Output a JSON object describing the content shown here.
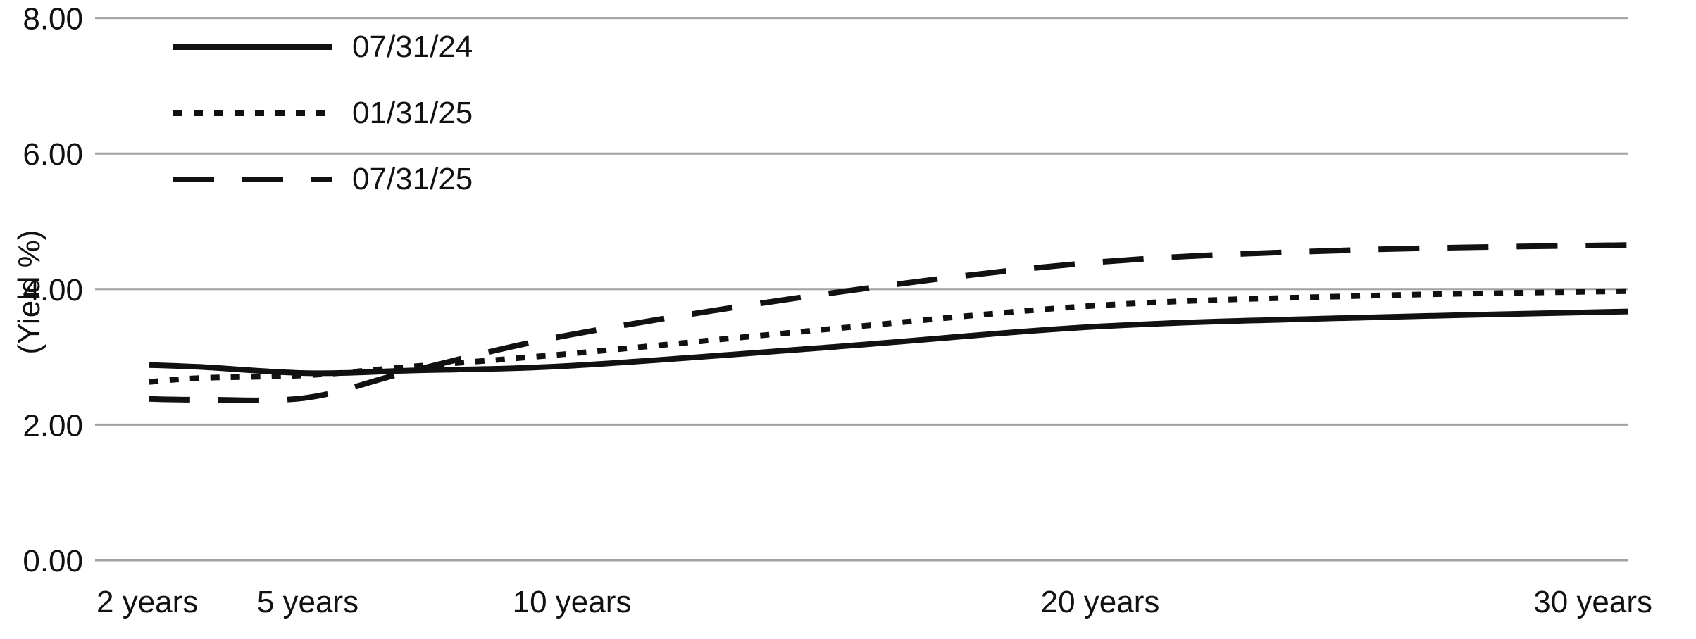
{
  "chart_data": {
    "type": "line",
    "title": "",
    "xlabel": "",
    "ylabel": "(Yield %)",
    "ylim": [
      0,
      8
    ],
    "xlim": [
      2,
      30
    ],
    "grid": "horizontal",
    "legend_position": "top-left",
    "y_ticks": [
      0,
      2,
      4,
      6,
      8
    ],
    "y_tick_labels": [
      "0.00",
      "2.00",
      "4.00",
      "6.00",
      "8.00"
    ],
    "x_ticks": [
      2,
      5,
      10,
      20,
      30
    ],
    "x_tick_labels": [
      "2 years",
      "5 years",
      "10 years",
      "20 years",
      "30 years"
    ],
    "x_unit": "years",
    "x": [
      2,
      3,
      5,
      7,
      10,
      15,
      20,
      25,
      30
    ],
    "series": [
      {
        "name": "07/31/24",
        "style": "solid",
        "values": [
          2.88,
          2.85,
          2.76,
          2.8,
          2.87,
          3.15,
          3.45,
          3.58,
          3.67
        ]
      },
      {
        "name": "01/31/25",
        "style": "dotted",
        "values": [
          2.63,
          2.69,
          2.73,
          2.86,
          3.05,
          3.42,
          3.76,
          3.9,
          3.97
        ]
      },
      {
        "name": "07/31/25",
        "style": "dashed",
        "values": [
          2.38,
          2.37,
          2.4,
          2.8,
          3.33,
          3.95,
          4.4,
          4.58,
          4.65
        ]
      }
    ],
    "colors": {
      "line": "#111111",
      "grid": "#a0a0a0",
      "background": "#ffffff"
    }
  }
}
